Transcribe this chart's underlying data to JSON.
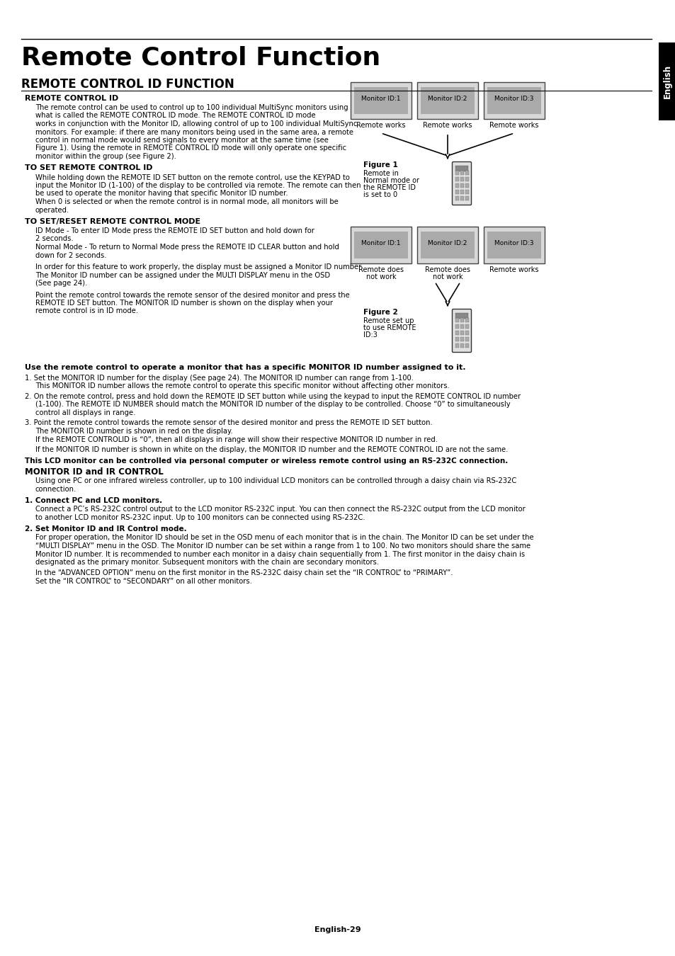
{
  "page_title": "Remote Control Function",
  "section_title": "REMOTE CONTROL ID FUNCTION",
  "bg_color": "#ffffff",
  "tab_text": "English",
  "footer_text": "English-29",
  "subsections": [
    {
      "heading": "REMOTE CONTROL ID",
      "paragraphs": [
        "The remote control can be used to control up to 100 individual MultiSync monitors using\nwhat is called the REMOTE CONTROL ID mode. The REMOTE CONTROL ID mode\nworks in conjunction with the Monitor ID, allowing control of up to 100 individual MultiSync\nmonitors. For example: if there are many monitors being used in the same area, a remote\ncontrol in normal mode would send signals to every monitor at the same time (see\nFigure 1). Using the remote in REMOTE CONTROL ID mode will only operate one specific\nmonitor within the group (see Figure 2)."
      ]
    },
    {
      "heading": "TO SET REMOTE CONTROL ID",
      "paragraphs": [
        "While holding down the REMOTE ID SET button on the remote control, use the KEYPAD to\ninput the Monitor ID (1-100) of the display to be controlled via remote. The remote can then\nbe used to operate the monitor having that specific Monitor ID number.\nWhen 0 is selected or when the remote control is in normal mode, all monitors will be\noperated."
      ]
    },
    {
      "heading": "TO SET/RESET REMOTE CONTROL MODE",
      "paragraphs": [
        "ID Mode - To enter ID Mode press the REMOTE ID SET button and hold down for\n2 seconds.\nNormal Mode - To return to Normal Mode press the REMOTE ID CLEAR button and hold\ndown for 2 seconds.",
        "In order for this feature to work properly, the display must be assigned a Monitor ID number.\nThe Monitor ID number can be assigned under the MULTI DISPLAY menu in the OSD\n(See page 24).",
        "Point the remote control towards the remote sensor of the desired monitor and press the\nREMOTE ID SET button. The MONITOR ID number is shown on the display when your\nremote control is in ID mode."
      ]
    }
  ],
  "bold_paragraph": "Use the remote control to operate a monitor that has a specific MONITOR ID number assigned to it.",
  "numbered_items": [
    {
      "num": "1.",
      "indent_lines": [
        "Set the MONITOR ID number for the display (See page 24). The MONITOR ID number can range from 1-100.",
        "This MONITOR ID number allows the remote control to operate this specific monitor without affecting other monitors."
      ]
    },
    {
      "num": "2.",
      "indent_lines": [
        "On the remote control, press and hold down the REMOTE ID SET button while using the keypad to input the REMOTE CONTROL ID number",
        "(1-100). The REMOTE ID NUMBER should match the MONITOR ID number of the display to be controlled. Choose “0” to simultaneously",
        "control all displays in range."
      ]
    },
    {
      "num": "3.",
      "indent_lines": [
        "Point the remote control towards the remote sensor of the desired monitor and press the REMOTE ID SET button.",
        "The MONITOR ID number is shown in red on the display.",
        "If the REMOTE CONTROLID is “0”, then all displays in range will show their respective MONITOR ID number in red."
      ]
    }
  ],
  "item4_line": "If the MONITOR ID number is shown in white on the display, the MONITOR ID number and the REMOTE CONTROL ID are not the same.",
  "bold_line": "This LCD monitor can be controlled via personal computer or wireless remote control using an RS-232C connection.",
  "monitor_id_heading": "MONITOR ID and IR CONTROL",
  "monitor_id_para": "Using one PC or one infrared wireless controller, up to 100 individual LCD monitors can be controlled through a daisy chain via RS-232C\nconnection.",
  "sub_items": [
    {
      "heading": "1. Connect PC and LCD monitors.",
      "text": "Connect a PC’s RS-232C control output to the LCD monitor RS-232C input. You can then connect the RS-232C output from the LCD monitor\nto another LCD monitor RS-232C input. Up to 100 monitors can be connected using RS-232C."
    },
    {
      "heading": "2. Set Monitor ID and IR Control mode.",
      "text": "For proper operation, the Monitor ID should be set in the OSD menu of each monitor that is in the chain. The Monitor ID can be set under the\n“MULTI DISPLAY” menu in the OSD. The Monitor ID number can be set within a range from 1 to 100. No two monitors should share the same\nMonitor ID number. It is recommended to number each monitor in a daisy chain sequentially from 1. The first monitor in the daisy chain is\ndesignated as the primary monitor. Subsequent monitors with the chain are secondary monitors.",
      "extra_lines": [
        "In the “ADVANCED OPTION” menu on the first monitor in the RS-232C daisy chain set the “IR CONTROL” to “PRIMARY”.",
        "Set the “IR CONTROL” to “SECONDARY” on all other monitors."
      ]
    }
  ],
  "figure1": {
    "monitors": [
      "Monitor ID:1",
      "Monitor ID:2",
      "Monitor ID:3"
    ],
    "labels": [
      "Remote works",
      "Remote works",
      "Remote works"
    ],
    "caption_bold": "Figure 1",
    "caption_lines": [
      "Remote in",
      "Normal mode or",
      "the REMOTE ID",
      "is set to 0"
    ]
  },
  "figure2": {
    "monitors": [
      "Monitor ID:1",
      "Monitor ID:2",
      "Monitor ID:3"
    ],
    "labels": [
      "Remote does\nnot work",
      "Remote does\nnot work",
      "Remote works"
    ],
    "caption_bold": "Figure 2",
    "caption_lines": [
      "Remote set up",
      "to use REMOTE",
      "ID:3"
    ]
  }
}
